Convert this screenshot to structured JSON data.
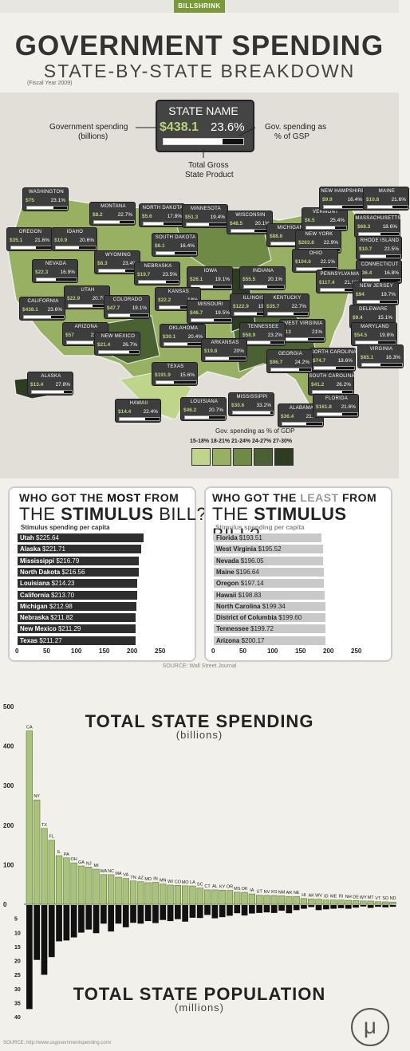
{
  "brand": "BILLSHRINK",
  "title": "GOVERNMENT SPENDING",
  "subtitle": "STATE-BY-STATE BREAKDOWN",
  "fiscal_year": "(Fiscal Year 2009)",
  "legend_box": {
    "state_name": "STATE NAME",
    "spending": "$438.1",
    "pct": "23.6%",
    "gov_spending_label_1": "Government spending",
    "gov_spending_label_2": "(billions)",
    "pct_label_1": "Gov. spending as",
    "pct_label_2": "% of GSP",
    "gsp_label_1": "Total Gross",
    "gsp_label_2": "State Product"
  },
  "states": [
    {
      "name": "WASHINGTON",
      "spend": "$75",
      "pct": "23.1%"
    },
    {
      "name": "OREGON",
      "spend": "$35.1",
      "pct": "21.6%"
    },
    {
      "name": "IDAHO",
      "spend": "$10.9",
      "pct": "20.6%"
    },
    {
      "name": "MONTANA",
      "spend": "$8.2",
      "pct": "22.7%"
    },
    {
      "name": "NORTH DAKOTA",
      "spend": "$5.6",
      "pct": "17.8%"
    },
    {
      "name": "MINNESOTA",
      "spend": "$51.3",
      "pct": "19.4%"
    },
    {
      "name": "WISCONSIN",
      "spend": "$48.5",
      "pct": "20.1%"
    },
    {
      "name": "MICHIGAN",
      "spend": "$88.6",
      "pct": "23%"
    },
    {
      "name": "VERMONT",
      "spend": "$6.5",
      "pct": "25.4%"
    },
    {
      "name": "NEW HAMPSHIRE",
      "spend": "$9.9",
      "pct": "16.4%"
    },
    {
      "name": "MAINE",
      "spend": "$10.8",
      "pct": "21.6%"
    },
    {
      "name": "MASSACHUSETTS",
      "spend": "$68.3",
      "pct": "18.6%"
    },
    {
      "name": "RHODE ISLAND",
      "spend": "$10.7",
      "pct": "22.5%"
    },
    {
      "name": "NEW YORK",
      "spend": "$263.8",
      "pct": "22.9%"
    },
    {
      "name": "CONNECTICUT",
      "spend": "$36.4",
      "pct": "16.8%"
    },
    {
      "name": "WYOMING",
      "spend": "$8.3",
      "pct": "23.4%"
    },
    {
      "name": "SOUTH DAKOTA",
      "spend": "$6.1",
      "pct": "16.4%"
    },
    {
      "name": "NEVADA",
      "spend": "$22.3",
      "pct": "16.9%"
    },
    {
      "name": "NEBRASKA",
      "spend": "$19.7",
      "pct": "23.5%"
    },
    {
      "name": "IOWA",
      "spend": "$26.1",
      "pct": "19.1%"
    },
    {
      "name": "INDIANA",
      "spend": "$55.5",
      "pct": "20.1%"
    },
    {
      "name": "OHIO",
      "spend": "$104.6",
      "pct": "22.1%"
    },
    {
      "name": "PENNSYLVANIA",
      "spend": "$117.4",
      "pct": "21.1%"
    },
    {
      "name": "NEW JERSEY",
      "spend": "$94",
      "pct": "19.7%"
    },
    {
      "name": "UTAH",
      "spend": "$22.9",
      "pct": "20.7%"
    },
    {
      "name": "CALIFORNIA",
      "spend": "$438.1",
      "pct": "23.6%"
    },
    {
      "name": "COLORADO",
      "spend": "$47.7",
      "pct": "19.1%"
    },
    {
      "name": "KANSAS",
      "spend": "$22.2",
      "pct": "18%"
    },
    {
      "name": "MISSOURI",
      "spend": "$46.7",
      "pct": "19.5%"
    },
    {
      "name": "ILLINOIS",
      "spend": "$122.9",
      "pct": "19.3%"
    },
    {
      "name": "KENTUCKY",
      "spend": "$35.7",
      "pct": "22.7%"
    },
    {
      "name": "DELEWARE",
      "spend": "$9.4",
      "pct": "15.1%"
    },
    {
      "name": "WEST VIRGINIA",
      "spend": "$13",
      "pct": "21%"
    },
    {
      "name": "MARYLAND",
      "spend": "$54.5",
      "pct": "19.8%"
    },
    {
      "name": "ARIZONA",
      "spend": "$57",
      "pct": "22.8%"
    },
    {
      "name": "NEW MEXICO",
      "spend": "$21.4",
      "pct": "26.7%"
    },
    {
      "name": "OKLAHOMA",
      "spend": "$30.1",
      "pct": "20.4%"
    },
    {
      "name": "TENNESSEE",
      "spend": "$58.9",
      "pct": "23.2%"
    },
    {
      "name": "VIRGINIA",
      "spend": "$65.1",
      "pct": "16.3%"
    },
    {
      "name": "ARKANSAS",
      "spend": "$19.8",
      "pct": "20%"
    },
    {
      "name": "NORTH CAROLINA",
      "spend": "$74.7",
      "pct": "18.6%"
    },
    {
      "name": "GEORGIA",
      "spend": "$96.7",
      "pct": "24.2%"
    },
    {
      "name": "TEXAS",
      "spend": "$191.9",
      "pct": "15.6%"
    },
    {
      "name": "SOUTH CAROLINA",
      "spend": "$41.2",
      "pct": "26.2%"
    },
    {
      "name": "ALASKA",
      "spend": "$13.4",
      "pct": "27.8%"
    },
    {
      "name": "HAWAII",
      "spend": "$14.4",
      "pct": "22.4%"
    },
    {
      "name": "LOUISIANA",
      "spend": "$46.2",
      "pct": "20.7%"
    },
    {
      "name": "MISSISSIPPI",
      "spend": "$30.6",
      "pct": "33.2%"
    },
    {
      "name": "ALABAMA",
      "spend": "$36.4",
      "pct": "21.3%"
    },
    {
      "name": "FLORIDA",
      "spend": "$161.8",
      "pct": "21.6%"
    }
  ],
  "gsp_legend": {
    "title": "Gov. spending as % of GDP",
    "ranges": [
      "15-18%",
      "18-21%",
      "21-24%",
      "24-27%",
      "27-30%"
    ],
    "colors": [
      "#bfd68a",
      "#97b062",
      "#6f8a45",
      "#4a6232",
      "#2c3d22"
    ]
  },
  "stimulus_most": {
    "heading_1a": "WHO GOT THE ",
    "heading_1b": "MOST",
    "heading_1c": " FROM",
    "heading_2a": "THE ",
    "heading_2b": "STIMULUS",
    "heading_2c": " BILL?",
    "subtitle": "Stimulus spending per capita",
    "rows": [
      {
        "state": "Utah",
        "value": "$225.64",
        "v": 225.64
      },
      {
        "state": "Alaska",
        "value": "$221.71",
        "v": 221.71
      },
      {
        "state": "Mississippi",
        "value": "$216.79",
        "v": 216.79
      },
      {
        "state": "North Dakota",
        "value": "$216.56",
        "v": 216.56
      },
      {
        "state": "Louisiana",
        "value": "$214.23",
        "v": 214.23
      },
      {
        "state": "California",
        "value": "$213.70",
        "v": 213.7
      },
      {
        "state": "Michigan",
        "value": "$212.98",
        "v": 212.98
      },
      {
        "state": "Nebraska",
        "value": "$211.82",
        "v": 211.82
      },
      {
        "state": "New Mexico",
        "value": "$211.29",
        "v": 211.29
      },
      {
        "state": "Texas",
        "value": "$211.27",
        "v": 211.27
      }
    ]
  },
  "stimulus_least": {
    "heading_1a": "WHO GOT THE ",
    "heading_1b": "LEAST",
    "heading_1c": " FROM",
    "heading_2a": "THE ",
    "heading_2b": "STIMULUS",
    "heading_2c": " BILL?",
    "subtitle": "Stimulus spending per capita",
    "rows": [
      {
        "state": "Florida",
        "value": "$193.51",
        "v": 193.51
      },
      {
        "state": "West Virginia",
        "value": "$195.52",
        "v": 195.52
      },
      {
        "state": "Nevada",
        "value": "$196.05",
        "v": 196.05
      },
      {
        "state": "Maine",
        "value": "$196.64",
        "v": 196.64
      },
      {
        "state": "Oregon",
        "value": "$197.14",
        "v": 197.14
      },
      {
        "state": "Hawaii",
        "value": "$198.83",
        "v": 198.83
      },
      {
        "state": "North Carolina",
        "value": "$199.34",
        "v": 199.34
      },
      {
        "state": "District of Columbia",
        "value": "$199.60",
        "v": 199.6
      },
      {
        "state": "Tennessee",
        "value": "$199.72",
        "v": 199.72
      },
      {
        "state": "Arizona",
        "value": "$200.17",
        "v": 200.17
      }
    ]
  },
  "stimulus_axis": [
    "0",
    "50",
    "100",
    "150",
    "200",
    "250"
  ],
  "source_1": "SOURCE: Wall Street Journal",
  "chart_data": {
    "type": "bar",
    "title_top": "TOTAL STATE SPENDING",
    "unit_top": "(billions)",
    "title_bottom": "TOTAL STATE POPULATION",
    "unit_bottom": "(millions)",
    "spending_ticks": [
      "500",
      "400",
      "300",
      "200",
      "100",
      "0"
    ],
    "population_ticks": [
      "5",
      "10",
      "15",
      "20",
      "25",
      "30",
      "35",
      "40"
    ],
    "spending_ylim": [
      0,
      500
    ],
    "population_ylim": [
      0,
      40
    ],
    "categories": [
      "CA",
      "NY",
      "TX",
      "FL",
      "IL",
      "PA",
      "OH",
      "GA",
      "NJ",
      "MI",
      "WA",
      "NC",
      "MA",
      "VA",
      "TN",
      "AZ",
      "MD",
      "IN",
      "MN",
      "WI",
      "CO",
      "MO",
      "LA",
      "SC",
      "CT",
      "AL",
      "KY",
      "OR",
      "MS",
      "OK",
      "IA",
      "UT",
      "NV",
      "KS",
      "NM",
      "AR",
      "NE",
      "HI",
      "AK",
      "WV",
      "ID",
      "ME",
      "RI",
      "NH",
      "DE",
      "WY",
      "MT",
      "VT",
      "SD",
      "ND"
    ],
    "spending": [
      438.1,
      263.8,
      191.9,
      161.8,
      122.9,
      117.4,
      104.6,
      96.7,
      94,
      88.6,
      75,
      74.7,
      68.3,
      65.1,
      58.9,
      57,
      54.5,
      55.5,
      51.3,
      48.5,
      47.7,
      46.7,
      46.2,
      41.2,
      36.4,
      36.4,
      35.7,
      35.1,
      30.6,
      30.1,
      26.1,
      22.9,
      22.3,
      22.2,
      21.4,
      19.8,
      19.7,
      14.4,
      13.4,
      13,
      10.9,
      10.8,
      10.7,
      9.9,
      9.4,
      8.3,
      8.2,
      6.5,
      6.1,
      5.6
    ],
    "population": [
      37,
      19.5,
      24.8,
      18.5,
      12.9,
      12.6,
      11.5,
      9.8,
      8.7,
      10,
      6.6,
      9.4,
      6.6,
      7.9,
      6.3,
      6.6,
      5.7,
      6.4,
      5.3,
      5.7,
      5,
      5.9,
      4.5,
      4.6,
      3.5,
      4.7,
      4.3,
      3.8,
      2.9,
      3.7,
      3,
      2.8,
      2.6,
      2.8,
      2,
      2.9,
      1.8,
      1.3,
      0.7,
      1.8,
      1.5,
      1.3,
      1.1,
      1.3,
      0.9,
      0.5,
      1,
      0.6,
      0.8,
      0.6
    ]
  },
  "source_2": "SOURCE: http://www.usgovernmentspending.com/",
  "logo_glyph": "μ"
}
